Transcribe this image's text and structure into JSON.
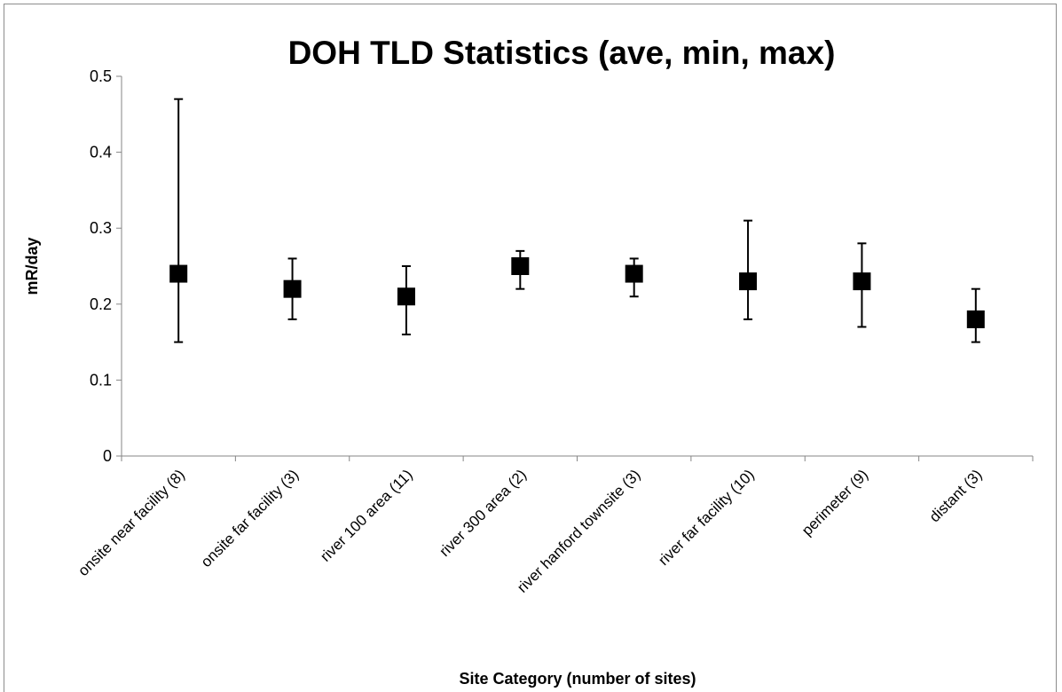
{
  "chart_data": {
    "type": "scatter",
    "title": "DOH TLD Statistics (ave, min, max)",
    "xlabel": "Site Category (number of sites)",
    "ylabel": "mR/day",
    "ylim": [
      0,
      0.5
    ],
    "yticks": [
      "0",
      "0.1",
      "0.2",
      "0.3",
      "0.4",
      "0.5"
    ],
    "ytick_values": [
      0,
      0.1,
      0.2,
      0.3,
      0.4,
      0.5
    ],
    "grid": false,
    "categories": [
      "onsite near facility (8)",
      "onsite far facility (3)",
      "river 100 area (11)",
      "river 300 area (2)",
      "river hanford townsite (3)",
      "river far facility (10)",
      "perimeter (9)",
      "distant (3)"
    ],
    "series": [
      {
        "values": [
          0.24,
          0.22,
          0.21,
          0.25,
          0.24,
          0.23,
          0.23,
          0.18
        ],
        "min": [
          0.15,
          0.18,
          0.16,
          0.22,
          0.21,
          0.18,
          0.17,
          0.15
        ],
        "max": [
          0.47,
          0.26,
          0.25,
          0.27,
          0.26,
          0.31,
          0.28,
          0.22
        ],
        "color": "#000000"
      }
    ]
  }
}
